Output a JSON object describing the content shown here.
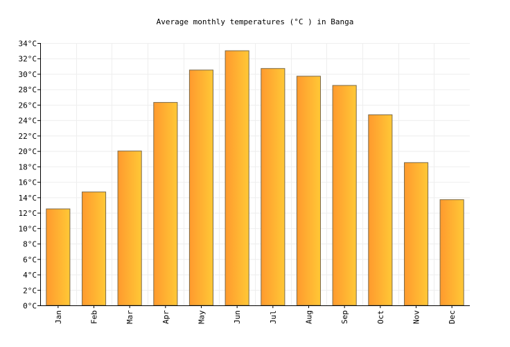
{
  "chart_data": {
    "type": "bar",
    "title": "Average monthly temperatures (°C ) in Banga",
    "xlabel": "",
    "ylabel": "",
    "categories": [
      "Jan",
      "Feb",
      "Mar",
      "Apr",
      "May",
      "Jun",
      "Jul",
      "Aug",
      "Sep",
      "Oct",
      "Nov",
      "Dec"
    ],
    "values": [
      12.5,
      14.7,
      20.0,
      26.3,
      30.5,
      33.0,
      30.7,
      29.7,
      28.5,
      24.7,
      18.5,
      13.7
    ],
    "ylim": [
      0,
      34
    ],
    "yticks": [
      0,
      2,
      4,
      6,
      8,
      10,
      12,
      14,
      16,
      18,
      20,
      22,
      24,
      26,
      28,
      30,
      32,
      34
    ],
    "ytick_suffix": "°C",
    "grid": true,
    "legend": "none",
    "colors": {
      "bar_left": "#ff9a2e",
      "bar_right": "#ffc836",
      "bar_stroke": "#7a6a4a",
      "grid": "#eeeeee",
      "axis": "#000000"
    }
  }
}
